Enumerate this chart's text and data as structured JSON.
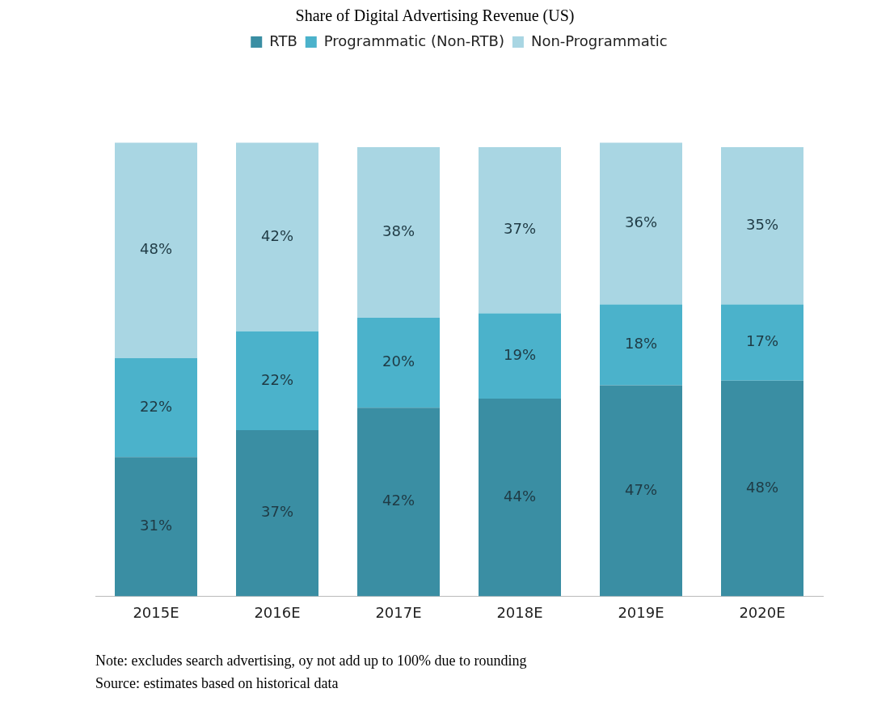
{
  "chart_data": {
    "type": "bar",
    "title": "Share of Digital Advertising Revenue (US)",
    "stacked": true,
    "legend": "top",
    "grid": false,
    "tick_labels": "x",
    "categories": [
      "2015E",
      "2016E",
      "2017E",
      "2018E",
      "2019E",
      "2020E"
    ],
    "series": [
      {
        "name": "RTB",
        "color": "#3a8ea3",
        "values": [
          31,
          37,
          42,
          44,
          47,
          48
        ],
        "value_labels": [
          "31%",
          "37%",
          "42%",
          "44%",
          "47%",
          "48%"
        ]
      },
      {
        "name": "Programmatic (Non-RTB)",
        "color": "#4bb2cb",
        "values": [
          22,
          22,
          20,
          19,
          18,
          17
        ],
        "value_labels": [
          "22%",
          "22%",
          "20%",
          "19%",
          "18%",
          "17%"
        ]
      },
      {
        "name": "Non-Programmatic",
        "color": "#a9d6e3",
        "values": [
          48,
          42,
          38,
          37,
          36,
          35
        ],
        "value_labels": [
          "48%",
          "42%",
          "38%",
          "37%",
          "36%",
          "35%"
        ]
      }
    ],
    "annotations": [
      "Note: excludes search advertising, oy not add up to 100% due to rounding",
      "Source: estimates based on historical data"
    ]
  }
}
